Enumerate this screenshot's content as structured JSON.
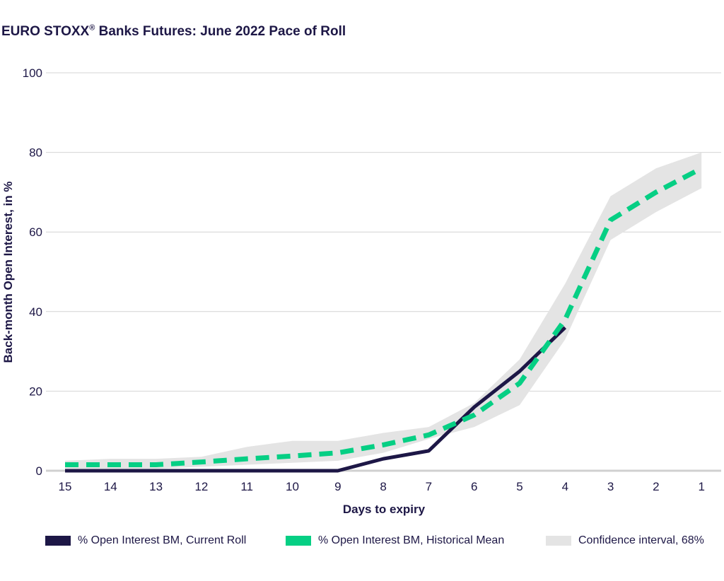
{
  "title_text": "EURO STOXX",
  "title_reg": "®",
  "title_rest": " Banks Futures: June 2022 Pace of Roll",
  "colors": {
    "current": "#1d1746",
    "historical": "#06cf84",
    "confidence": "#e4e4e4",
    "grid": "#d4d4d4",
    "axis": "#d0d0d0"
  },
  "chart_data": {
    "type": "line",
    "xlabel": "Days to expiry",
    "ylabel": "Back-month Open Interest, in %",
    "ylim": [
      0,
      100
    ],
    "yticks": [
      0,
      20,
      40,
      60,
      80,
      100
    ],
    "categories": [
      "15",
      "14",
      "13",
      "12",
      "11",
      "10",
      "9",
      "8",
      "7",
      "6",
      "5",
      "4",
      "3",
      "2",
      "1"
    ],
    "series": [
      {
        "name": "% Open Interest BM, Current Roll",
        "style": "solid",
        "values": [
          0,
          0,
          0,
          0,
          0,
          0,
          0,
          3,
          5,
          16,
          25,
          36,
          null,
          null,
          null
        ]
      },
      {
        "name": "% Open Interest BM, Historical Mean",
        "style": "dashed",
        "values": [
          1.5,
          1.5,
          1.5,
          2.2,
          3,
          3.7,
          4.5,
          6.5,
          9,
          14,
          22,
          38,
          63,
          70,
          76
        ]
      }
    ],
    "confidence": {
      "name": "Confidence interval, 68%",
      "upper": [
        2.5,
        3,
        3,
        3.5,
        6,
        7.5,
        7.5,
        9.5,
        11,
        17,
        28,
        47,
        69,
        76,
        80
      ],
      "lower": [
        0.5,
        0.5,
        0.5,
        1,
        1.5,
        2,
        2.5,
        4.5,
        8,
        11,
        16.5,
        33,
        58,
        65,
        71
      ]
    },
    "legend": [
      "% Open Interest BM, Current Roll",
      "% Open Interest BM, Historical Mean",
      "Confidence interval, 68%"
    ]
  }
}
